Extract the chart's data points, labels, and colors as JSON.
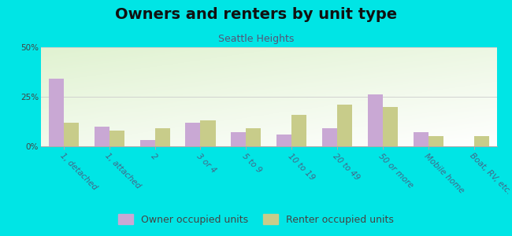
{
  "title": "Owners and renters by unit type",
  "subtitle": "Seattle Heights",
  "categories": [
    "1, detached",
    "1, attached",
    "2",
    "3 or 4",
    "5 to 9",
    "10 to 19",
    "20 to 49",
    "50 or more",
    "Mobile home",
    "Boat, RV, etc."
  ],
  "owner_values": [
    34,
    10,
    3,
    12,
    7,
    6,
    9,
    26,
    7,
    0
  ],
  "renter_values": [
    12,
    8,
    9,
    13,
    9,
    16,
    21,
    20,
    5,
    5
  ],
  "owner_color": "#c9a8d4",
  "renter_color": "#c8cc8a",
  "ylim": [
    0,
    50
  ],
  "yticks": [
    0,
    25,
    50
  ],
  "ytick_labels": [
    "0%",
    "25%",
    "50%"
  ],
  "bg_outer": "#00e5e5",
  "title_fontsize": 14,
  "subtitle_fontsize": 9,
  "legend_fontsize": 9,
  "tick_fontsize": 7.5,
  "title_color": "#111111",
  "subtitle_color": "#555577",
  "tick_color": "#446688",
  "ytick_color": "#444444"
}
